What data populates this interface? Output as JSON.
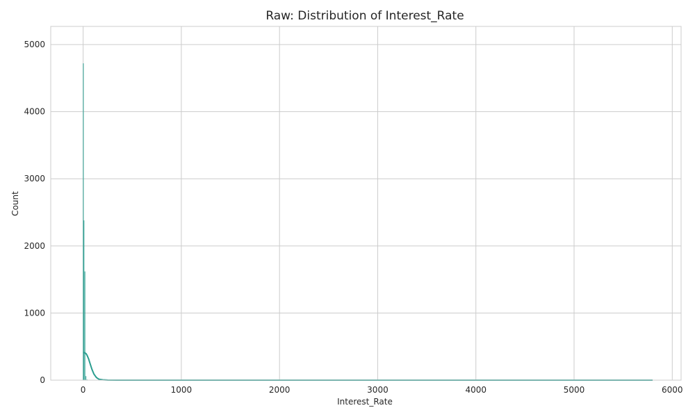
{
  "chart_data": {
    "type": "histogram",
    "title": "Raw: Distribution of Interest_Rate",
    "xlabel": "Interest_Rate",
    "ylabel": "Count",
    "xlim": [
      -330,
      6090
    ],
    "ylim": [
      0,
      5270
    ],
    "xticks": [
      0,
      1000,
      2000,
      3000,
      4000,
      5000,
      6000
    ],
    "yticks": [
      0,
      1000,
      2000,
      3000,
      4000,
      5000
    ],
    "grid": true,
    "colors": {
      "bars": "#2a9d8f",
      "kde": "#2a9d8f",
      "grid": "#cccccc"
    },
    "bins": [
      {
        "x": 2,
        "count": 4720
      },
      {
        "x": 8,
        "count": 2380
      },
      {
        "x": 18,
        "count": 1620
      },
      {
        "x": 28,
        "count": 60
      },
      {
        "x": 40,
        "count": 10
      }
    ],
    "kde": {
      "x": [
        0,
        10,
        20,
        30,
        40,
        55,
        70,
        90,
        110,
        135,
        160,
        200,
        250,
        350,
        500,
        1000,
        2000,
        3000,
        4000,
        5000,
        5800
      ],
      "y": [
        410,
        410,
        405,
        395,
        370,
        320,
        250,
        160,
        90,
        40,
        15,
        5,
        1,
        0,
        0,
        0,
        0,
        0,
        0,
        0,
        0
      ]
    }
  }
}
